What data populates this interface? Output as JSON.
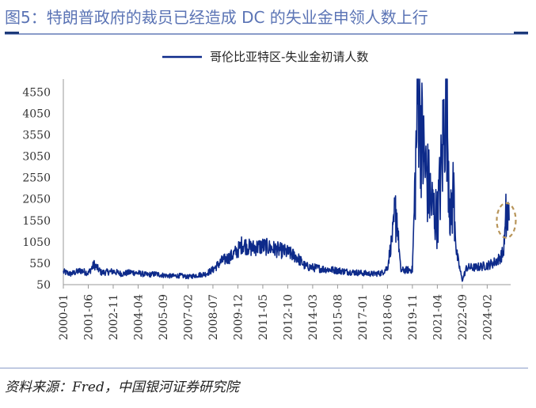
{
  "header": {
    "title": "图5：特朗普政府的裁员已经造成 DC 的失业金申领人数上行"
  },
  "footer": {
    "source": "资料来源：Fred，中国银河证券研究院"
  },
  "chart_data": {
    "type": "line",
    "title": "",
    "xlabel": "",
    "ylabel": "",
    "legend_position": "top",
    "grid": false,
    "ylim": [
      50,
      4850
    ],
    "y_ticks": [
      50,
      550,
      1050,
      1550,
      2050,
      2550,
      3050,
      3550,
      4050,
      4550
    ],
    "x_range": [
      "2000-01",
      "2025-06"
    ],
    "x_tick_labels": [
      "2000-01",
      "2001-06",
      "2002-11",
      "2004-04",
      "2005-09",
      "2007-02",
      "2008-07",
      "2009-12",
      "2011-05",
      "2012-10",
      "2014-03",
      "2015-08",
      "2017-01",
      "2018-06",
      "2019-11",
      "2021-04",
      "2022-09",
      "2024-02"
    ],
    "series": [
      {
        "name": "哥伦比亚特区-失业金初请人数",
        "color": "#0d2a8a",
        "points": [
          [
            "2000-01",
            350
          ],
          [
            "2000-06",
            300
          ],
          [
            "2001-01",
            380
          ],
          [
            "2001-06",
            320
          ],
          [
            "2001-10",
            520
          ],
          [
            "2002-03",
            330
          ],
          [
            "2002-11",
            360
          ],
          [
            "2003-05",
            300
          ],
          [
            "2003-11",
            340
          ],
          [
            "2004-04",
            320
          ],
          [
            "2004-10",
            280
          ],
          [
            "2005-04",
            300
          ],
          [
            "2005-09",
            270
          ],
          [
            "2006-03",
            250
          ],
          [
            "2006-09",
            260
          ],
          [
            "2007-02",
            230
          ],
          [
            "2007-08",
            270
          ],
          [
            "2008-02",
            300
          ],
          [
            "2008-07",
            400
          ],
          [
            "2009-01",
            600
          ],
          [
            "2009-07",
            700
          ],
          [
            "2009-12",
            850
          ],
          [
            "2010-03",
            1000
          ],
          [
            "2010-09",
            900
          ],
          [
            "2011-05",
            950
          ],
          [
            "2011-11",
            900
          ],
          [
            "2012-05",
            850
          ],
          [
            "2012-10",
            800
          ],
          [
            "2013-04",
            700
          ],
          [
            "2013-10",
            480
          ],
          [
            "2014-03",
            450
          ],
          [
            "2014-09",
            420
          ],
          [
            "2015-03",
            400
          ],
          [
            "2015-08",
            380
          ],
          [
            "2016-03",
            350
          ],
          [
            "2017-01",
            320
          ],
          [
            "2017-08",
            300
          ],
          [
            "2018-02",
            320
          ],
          [
            "2018-06",
            450
          ],
          [
            "2018-12",
            1800
          ],
          [
            "2019-03",
            380
          ],
          [
            "2019-11",
            400
          ],
          [
            "2020-03",
            4800
          ],
          [
            "2020-06",
            3200
          ],
          [
            "2020-09",
            2500
          ],
          [
            "2021-01",
            1800
          ],
          [
            "2021-04",
            1600
          ],
          [
            "2021-07",
            2800
          ],
          [
            "2021-10",
            4800
          ],
          [
            "2022-01",
            1500
          ],
          [
            "2022-03",
            2300
          ],
          [
            "2022-05",
            800
          ],
          [
            "2022-09",
            150
          ],
          [
            "2022-12",
            450
          ],
          [
            "2023-06",
            450
          ],
          [
            "2024-02",
            500
          ],
          [
            "2024-06",
            550
          ],
          [
            "2024-10",
            650
          ],
          [
            "2025-01",
            800
          ],
          [
            "2025-03",
            1650
          ],
          [
            "2025-05",
            1550
          ]
        ]
      }
    ],
    "annotation": {
      "shape": "dashed-ellipse",
      "x": "2025-03",
      "y": 1550,
      "color": "#b8955a"
    }
  }
}
